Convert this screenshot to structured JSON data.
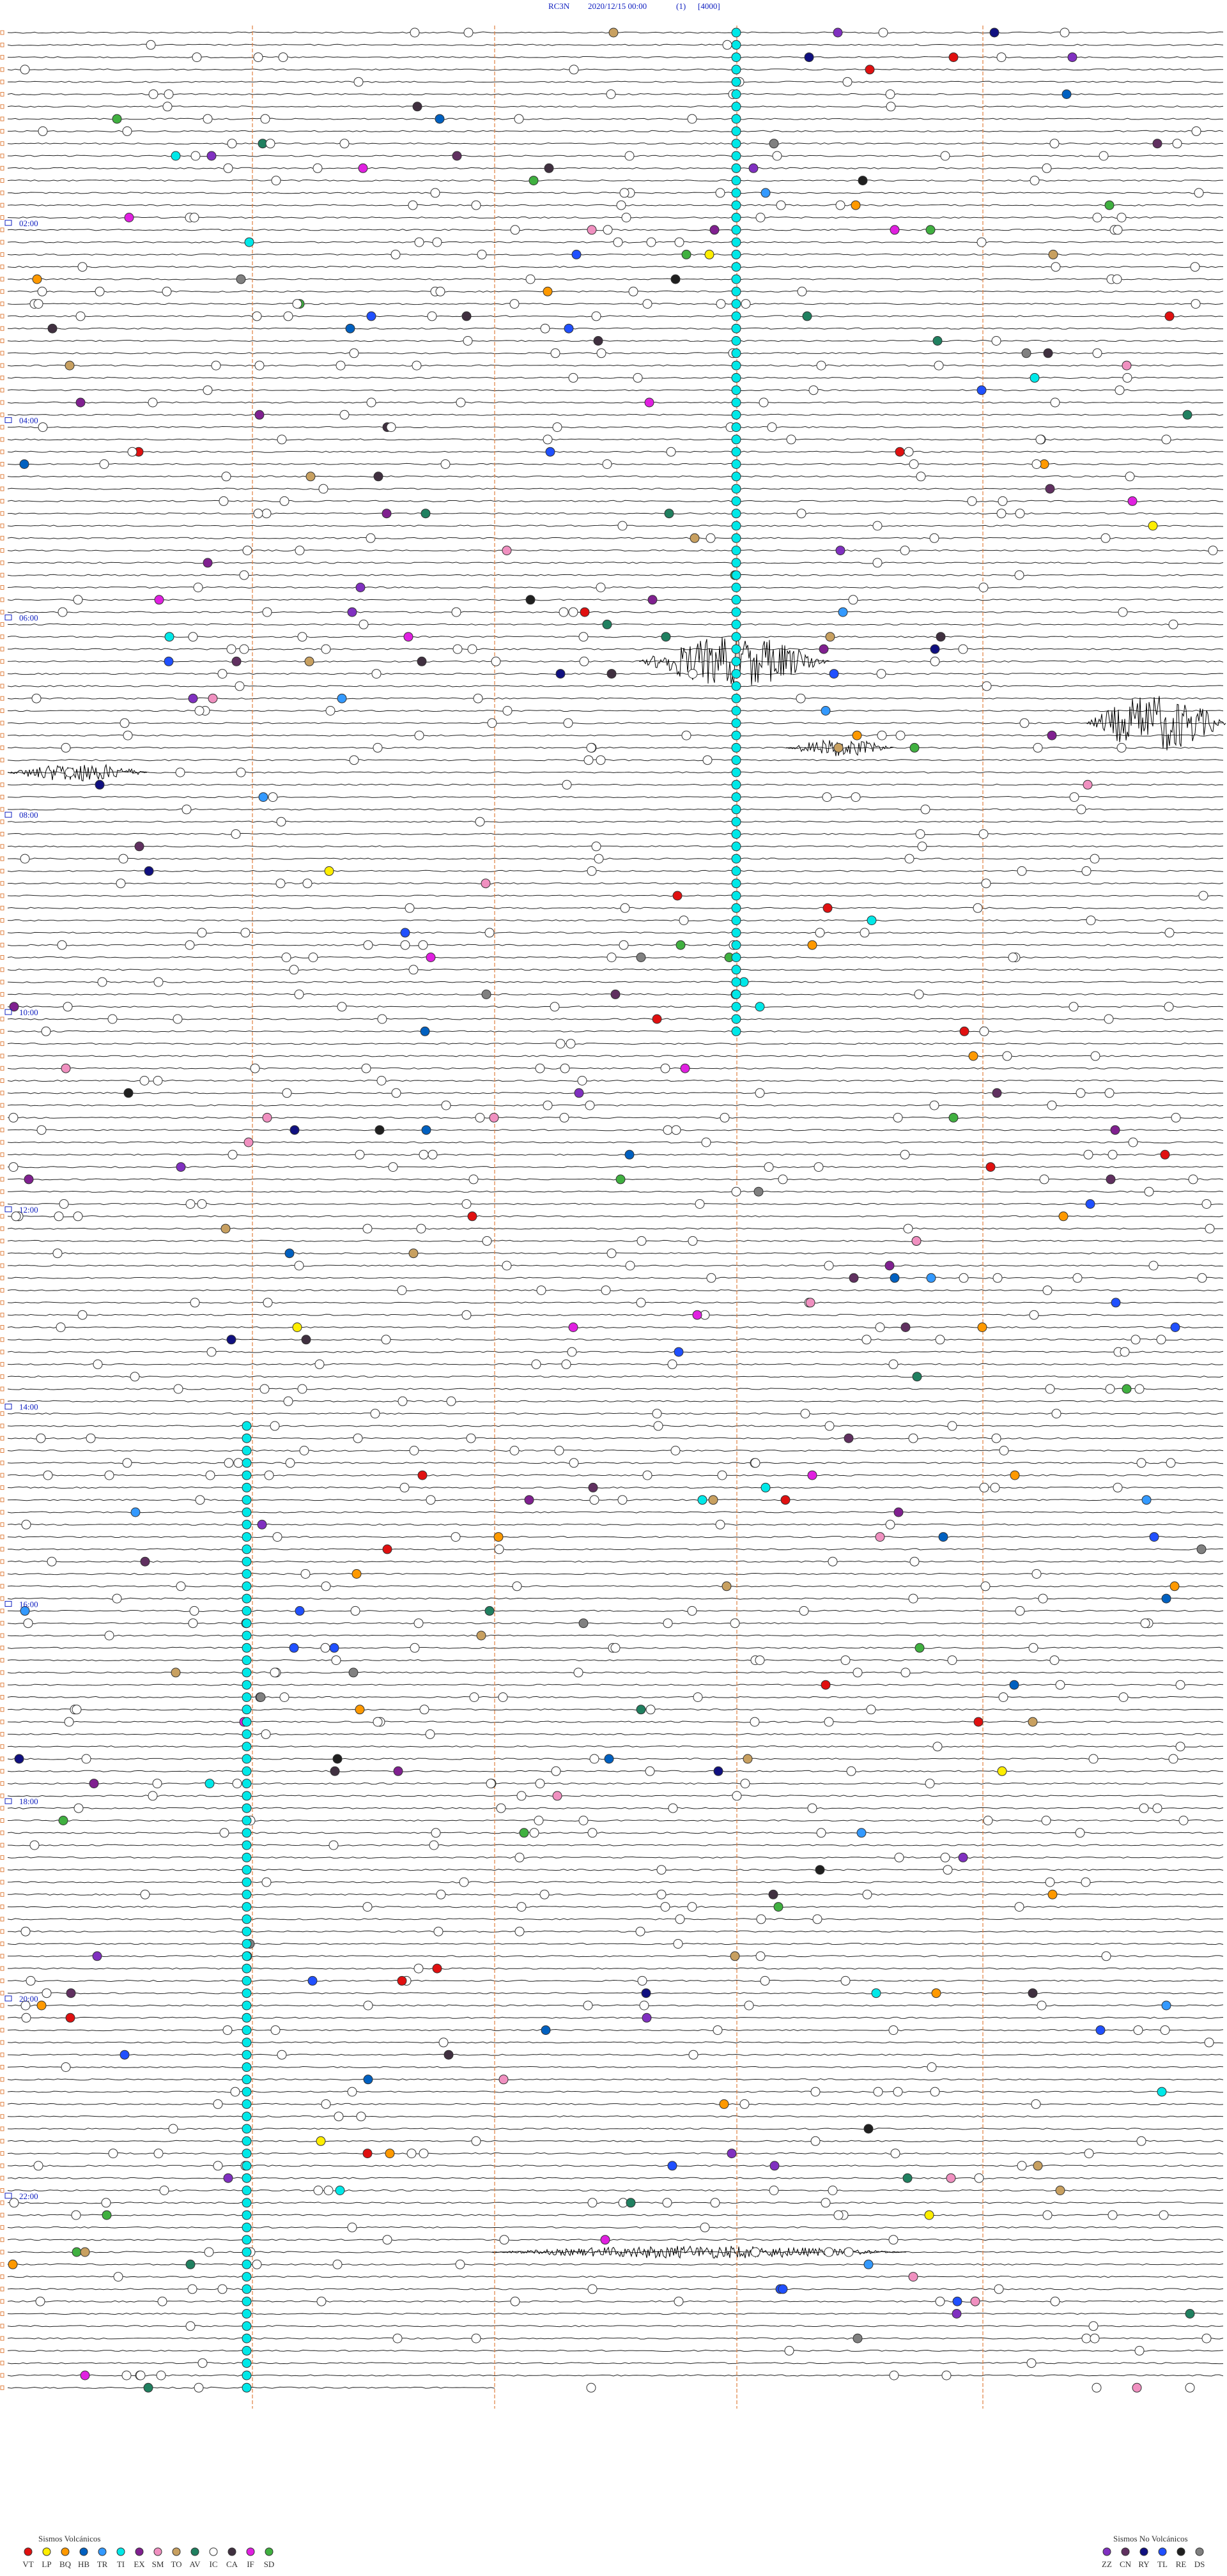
{
  "header": {
    "station": "RC3N",
    "datetime": "2020/12/15 00:00",
    "channel": "(1)",
    "scale": "[4000]"
  },
  "hour_labels": [
    "02:00",
    "04:00",
    "06:00",
    "08:00",
    "10:00",
    "12:00",
    "14:00",
    "16:00",
    "18:00",
    "20:00",
    "22:00"
  ],
  "legend": {
    "volcanic": {
      "title": "Sismos Volcánicos",
      "items": [
        {
          "label": "VT",
          "color": "#e01010"
        },
        {
          "label": "LP",
          "color": "#ffee00"
        },
        {
          "label": "BQ",
          "color": "#ff9900"
        },
        {
          "label": "HB",
          "color": "#0060c0"
        },
        {
          "label": "TR",
          "color": "#3399ff"
        },
        {
          "label": "TI",
          "color": "#00e8e8"
        },
        {
          "label": "EX",
          "color": "#802090"
        },
        {
          "label": "SM",
          "color": "#f090c0"
        },
        {
          "label": "TO",
          "color": "#c8a060"
        },
        {
          "label": "AV",
          "color": "#208060"
        },
        {
          "label": "IC",
          "color": "#ffffff"
        },
        {
          "label": "CA",
          "color": "#403040"
        },
        {
          "label": "IF",
          "color": "#e020e0"
        },
        {
          "label": "SD",
          "color": "#40b040"
        }
      ]
    },
    "non_volcanic": {
      "title": "Sismos No Volcánicos",
      "items": [
        {
          "label": "ZZ",
          "color": "#8030c0"
        },
        {
          "label": "CN",
          "color": "#603060"
        },
        {
          "label": "RY",
          "color": "#101080"
        },
        {
          "label": "TL",
          "color": "#2050ff"
        },
        {
          "label": "RE",
          "color": "#202020"
        },
        {
          "label": "DS",
          "color": "#808080"
        }
      ]
    }
  }
}
